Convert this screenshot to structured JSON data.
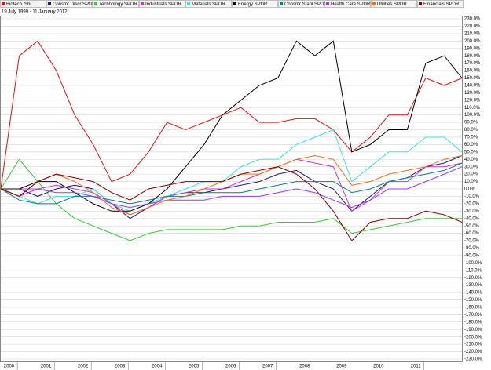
{
  "chart_data": {
    "type": "line",
    "subtitle": "19 July 1999 - 11 January 2012",
    "x": [
      1999.55,
      2000.05,
      2000.55,
      2001.05,
      2001.55,
      2002.05,
      2002.55,
      2003.05,
      2003.55,
      2004.05,
      2004.55,
      2005.05,
      2005.55,
      2006.05,
      2006.55,
      2007.05,
      2007.55,
      2008.05,
      2008.55,
      2009.05,
      2009.55,
      2010.05,
      2010.55,
      2011.05,
      2011.55,
      2012.03
    ],
    "xlim": [
      1999.55,
      2012.03
    ],
    "xticks": [
      2000,
      2001,
      2002,
      2003,
      2004,
      2005,
      2006,
      2007,
      2008,
      2009,
      2010,
      2011
    ],
    "ylim": [
      -230,
      230
    ],
    "yticks": [
      {
        "value": 230,
        "label": "230.0%"
      },
      {
        "value": 220,
        "label": "220.0%"
      },
      {
        "value": 210,
        "label": "210.0%"
      },
      {
        "value": 200,
        "label": "200.0%"
      },
      {
        "value": 190,
        "label": "190.0%"
      },
      {
        "value": 180,
        "label": "180.0%"
      },
      {
        "value": 170,
        "label": "170.0%"
      },
      {
        "value": 160,
        "label": "160.0%"
      },
      {
        "value": 150,
        "label": "150.0%"
      },
      {
        "value": 140,
        "label": "140.0%"
      },
      {
        "value": 130,
        "label": "130.0%"
      },
      {
        "value": 120,
        "label": "120.0%"
      },
      {
        "value": 110,
        "label": "110.0%"
      },
      {
        "value": 100,
        "label": "100.0%"
      },
      {
        "value": 90,
        "label": "90.0%"
      },
      {
        "value": 80,
        "label": "80.0%"
      },
      {
        "value": 70,
        "label": "70.0%"
      },
      {
        "value": 60,
        "label": "60.0%"
      },
      {
        "value": 50,
        "label": "50.0%"
      },
      {
        "value": 40,
        "label": "40.0%"
      },
      {
        "value": 30,
        "label": "30.0%"
      },
      {
        "value": 20,
        "label": "20.0%"
      },
      {
        "value": 10,
        "label": "10.0%"
      },
      {
        "value": 0,
        "label": "0.0%"
      },
      {
        "value": -10,
        "label": "-10.0%"
      },
      {
        "value": -20,
        "label": "-20.0%"
      },
      {
        "value": -30,
        "label": "-30.0%"
      },
      {
        "value": -40,
        "label": "-40.0%"
      },
      {
        "value": -50,
        "label": "-50.0%"
      },
      {
        "value": -60,
        "label": "-60.0%"
      },
      {
        "value": -70,
        "label": "-70.0%"
      },
      {
        "value": -80,
        "label": "-80.0%"
      },
      {
        "value": -90,
        "label": "-90.0%"
      },
      {
        "value": -100,
        "label": "-100.0%"
      },
      {
        "value": -110,
        "label": "-110.0%"
      },
      {
        "value": -120,
        "label": "-120.0%"
      },
      {
        "value": -130,
        "label": "-130.0%"
      },
      {
        "value": -140,
        "label": "-140.0%"
      },
      {
        "value": -150,
        "label": "-150.0%"
      },
      {
        "value": -160,
        "label": "-160.0%"
      },
      {
        "value": -170,
        "label": "-170.0%"
      },
      {
        "value": -180,
        "label": "-180.0%"
      },
      {
        "value": -190,
        "label": "-190.0%"
      },
      {
        "value": -200,
        "label": "-200.0%"
      },
      {
        "value": -210,
        "label": "-210.0%"
      },
      {
        "value": -220,
        "label": "-220.0%"
      },
      {
        "value": -230,
        "label": "-230.0%"
      }
    ],
    "grid": true,
    "legend": "top",
    "series": [
      {
        "name": "Biotech iShr",
        "color": "#e01010",
        "values": [
          0,
          180,
          200,
          160,
          100,
          60,
          10,
          20,
          50,
          90,
          80,
          90,
          100,
          110,
          90,
          90,
          95,
          95,
          80,
          50,
          70,
          100,
          100,
          150,
          140,
          150
        ]
      },
      {
        "name": "Consmr Discr SPDR",
        "color": "#1a1a80",
        "values": [
          0,
          0,
          -10,
          0,
          5,
          0,
          -20,
          -40,
          -25,
          -10,
          -5,
          -5,
          0,
          5,
          10,
          20,
          25,
          10,
          0,
          -30,
          -10,
          10,
          15,
          30,
          35,
          45
        ]
      },
      {
        "name": "Technology SPDR",
        "color": "#33cc33",
        "values": [
          0,
          40,
          10,
          -20,
          -40,
          -50,
          -60,
          -70,
          -60,
          -55,
          -55,
          -55,
          -55,
          -50,
          -50,
          -45,
          -45,
          -45,
          -40,
          -60,
          -55,
          -50,
          -45,
          -40,
          -40,
          -40
        ]
      },
      {
        "name": "Industrials SPDR",
        "color": "#cc33cc",
        "values": [
          0,
          0,
          0,
          5,
          0,
          -5,
          -20,
          -35,
          -25,
          -10,
          -5,
          0,
          0,
          10,
          20,
          30,
          40,
          35,
          30,
          -30,
          -15,
          10,
          10,
          30,
          30,
          35
        ]
      },
      {
        "name": "Materials SPDR",
        "color": "#33e6e6",
        "values": [
          0,
          -10,
          -20,
          -10,
          -10,
          0,
          -20,
          -30,
          -20,
          -10,
          0,
          10,
          10,
          30,
          40,
          40,
          60,
          70,
          80,
          10,
          30,
          50,
          50,
          70,
          70,
          50
        ]
      },
      {
        "name": "Energy SPDR",
        "color": "#000000",
        "values": [
          0,
          0,
          10,
          10,
          -5,
          -20,
          -30,
          -30,
          -20,
          0,
          30,
          60,
          100,
          120,
          140,
          150,
          200,
          180,
          200,
          50,
          60,
          80,
          80,
          170,
          180,
          150
        ]
      },
      {
        "name": "Consmr Stapl SPDR",
        "color": "#008080",
        "values": [
          0,
          -15,
          -20,
          -20,
          -10,
          -10,
          -15,
          -20,
          -15,
          -10,
          -10,
          -5,
          -5,
          -5,
          0,
          5,
          10,
          10,
          10,
          -5,
          0,
          10,
          15,
          20,
          25,
          35
        ]
      },
      {
        "name": "Health Care SPDR",
        "color": "#9933ff",
        "values": [
          0,
          -10,
          0,
          -5,
          -5,
          -10,
          -20,
          -25,
          -20,
          -15,
          -15,
          -15,
          -10,
          -10,
          -10,
          -5,
          0,
          -5,
          -15,
          -25,
          -15,
          0,
          0,
          10,
          20,
          30
        ]
      },
      {
        "name": "Utilities SPDR",
        "color": "#ff6a13",
        "values": [
          0,
          -10,
          10,
          20,
          10,
          -5,
          -25,
          -35,
          -25,
          -15,
          -10,
          0,
          10,
          20,
          20,
          30,
          40,
          45,
          40,
          5,
          10,
          20,
          25,
          30,
          40,
          45
        ]
      },
      {
        "name": "Financials SPDR",
        "color": "#800000",
        "values": [
          0,
          -10,
          10,
          20,
          15,
          10,
          -5,
          -15,
          0,
          5,
          10,
          10,
          10,
          20,
          25,
          30,
          20,
          0,
          -30,
          -70,
          -45,
          -40,
          -40,
          -30,
          -35,
          -45
        ]
      }
    ]
  }
}
